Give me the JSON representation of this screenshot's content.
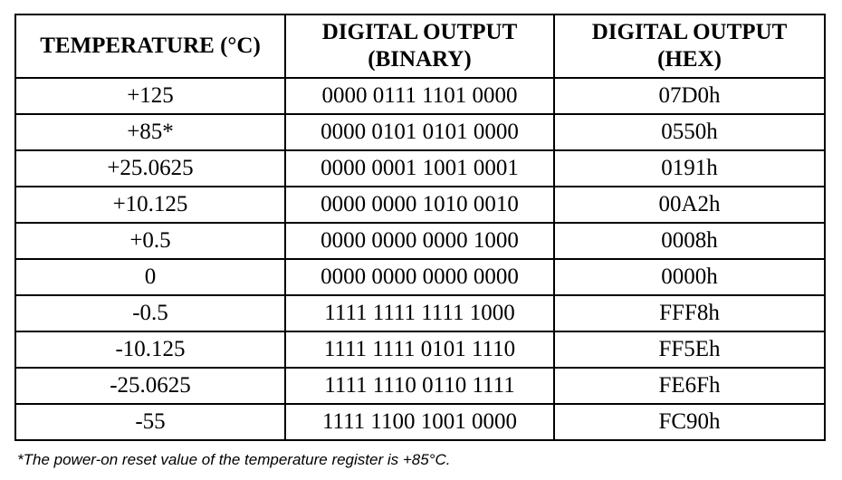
{
  "table": {
    "headers": [
      {
        "lines": [
          "TEMPERATURE (°C)"
        ]
      },
      {
        "lines": [
          "DIGITAL OUTPUT",
          "(BINARY)"
        ]
      },
      {
        "lines": [
          "DIGITAL OUTPUT",
          "(HEX)"
        ]
      }
    ],
    "rows": [
      [
        "+125",
        "0000 0111 1101 0000",
        "07D0h"
      ],
      [
        "+85*",
        "0000 0101 0101 0000",
        "0550h"
      ],
      [
        "+25.0625",
        "0000 0001 1001 0001",
        "0191h"
      ],
      [
        "+10.125",
        "0000 0000 1010 0010",
        "00A2h"
      ],
      [
        "+0.5",
        "0000 0000 0000 1000",
        "0008h"
      ],
      [
        "0",
        "0000 0000 0000 0000",
        "0000h"
      ],
      [
        "-0.5",
        "1111 1111 1111 1000",
        "FFF8h"
      ],
      [
        "-10.125",
        "1111 1111 0101 1110",
        "FF5Eh"
      ],
      [
        "-25.0625",
        "1111 1110 0110 1111",
        "FE6Fh"
      ],
      [
        "-55",
        "1111 1100 1001 0000",
        "FC90h"
      ]
    ]
  },
  "footnote": "*The power-on reset value of the temperature register is +85°C."
}
